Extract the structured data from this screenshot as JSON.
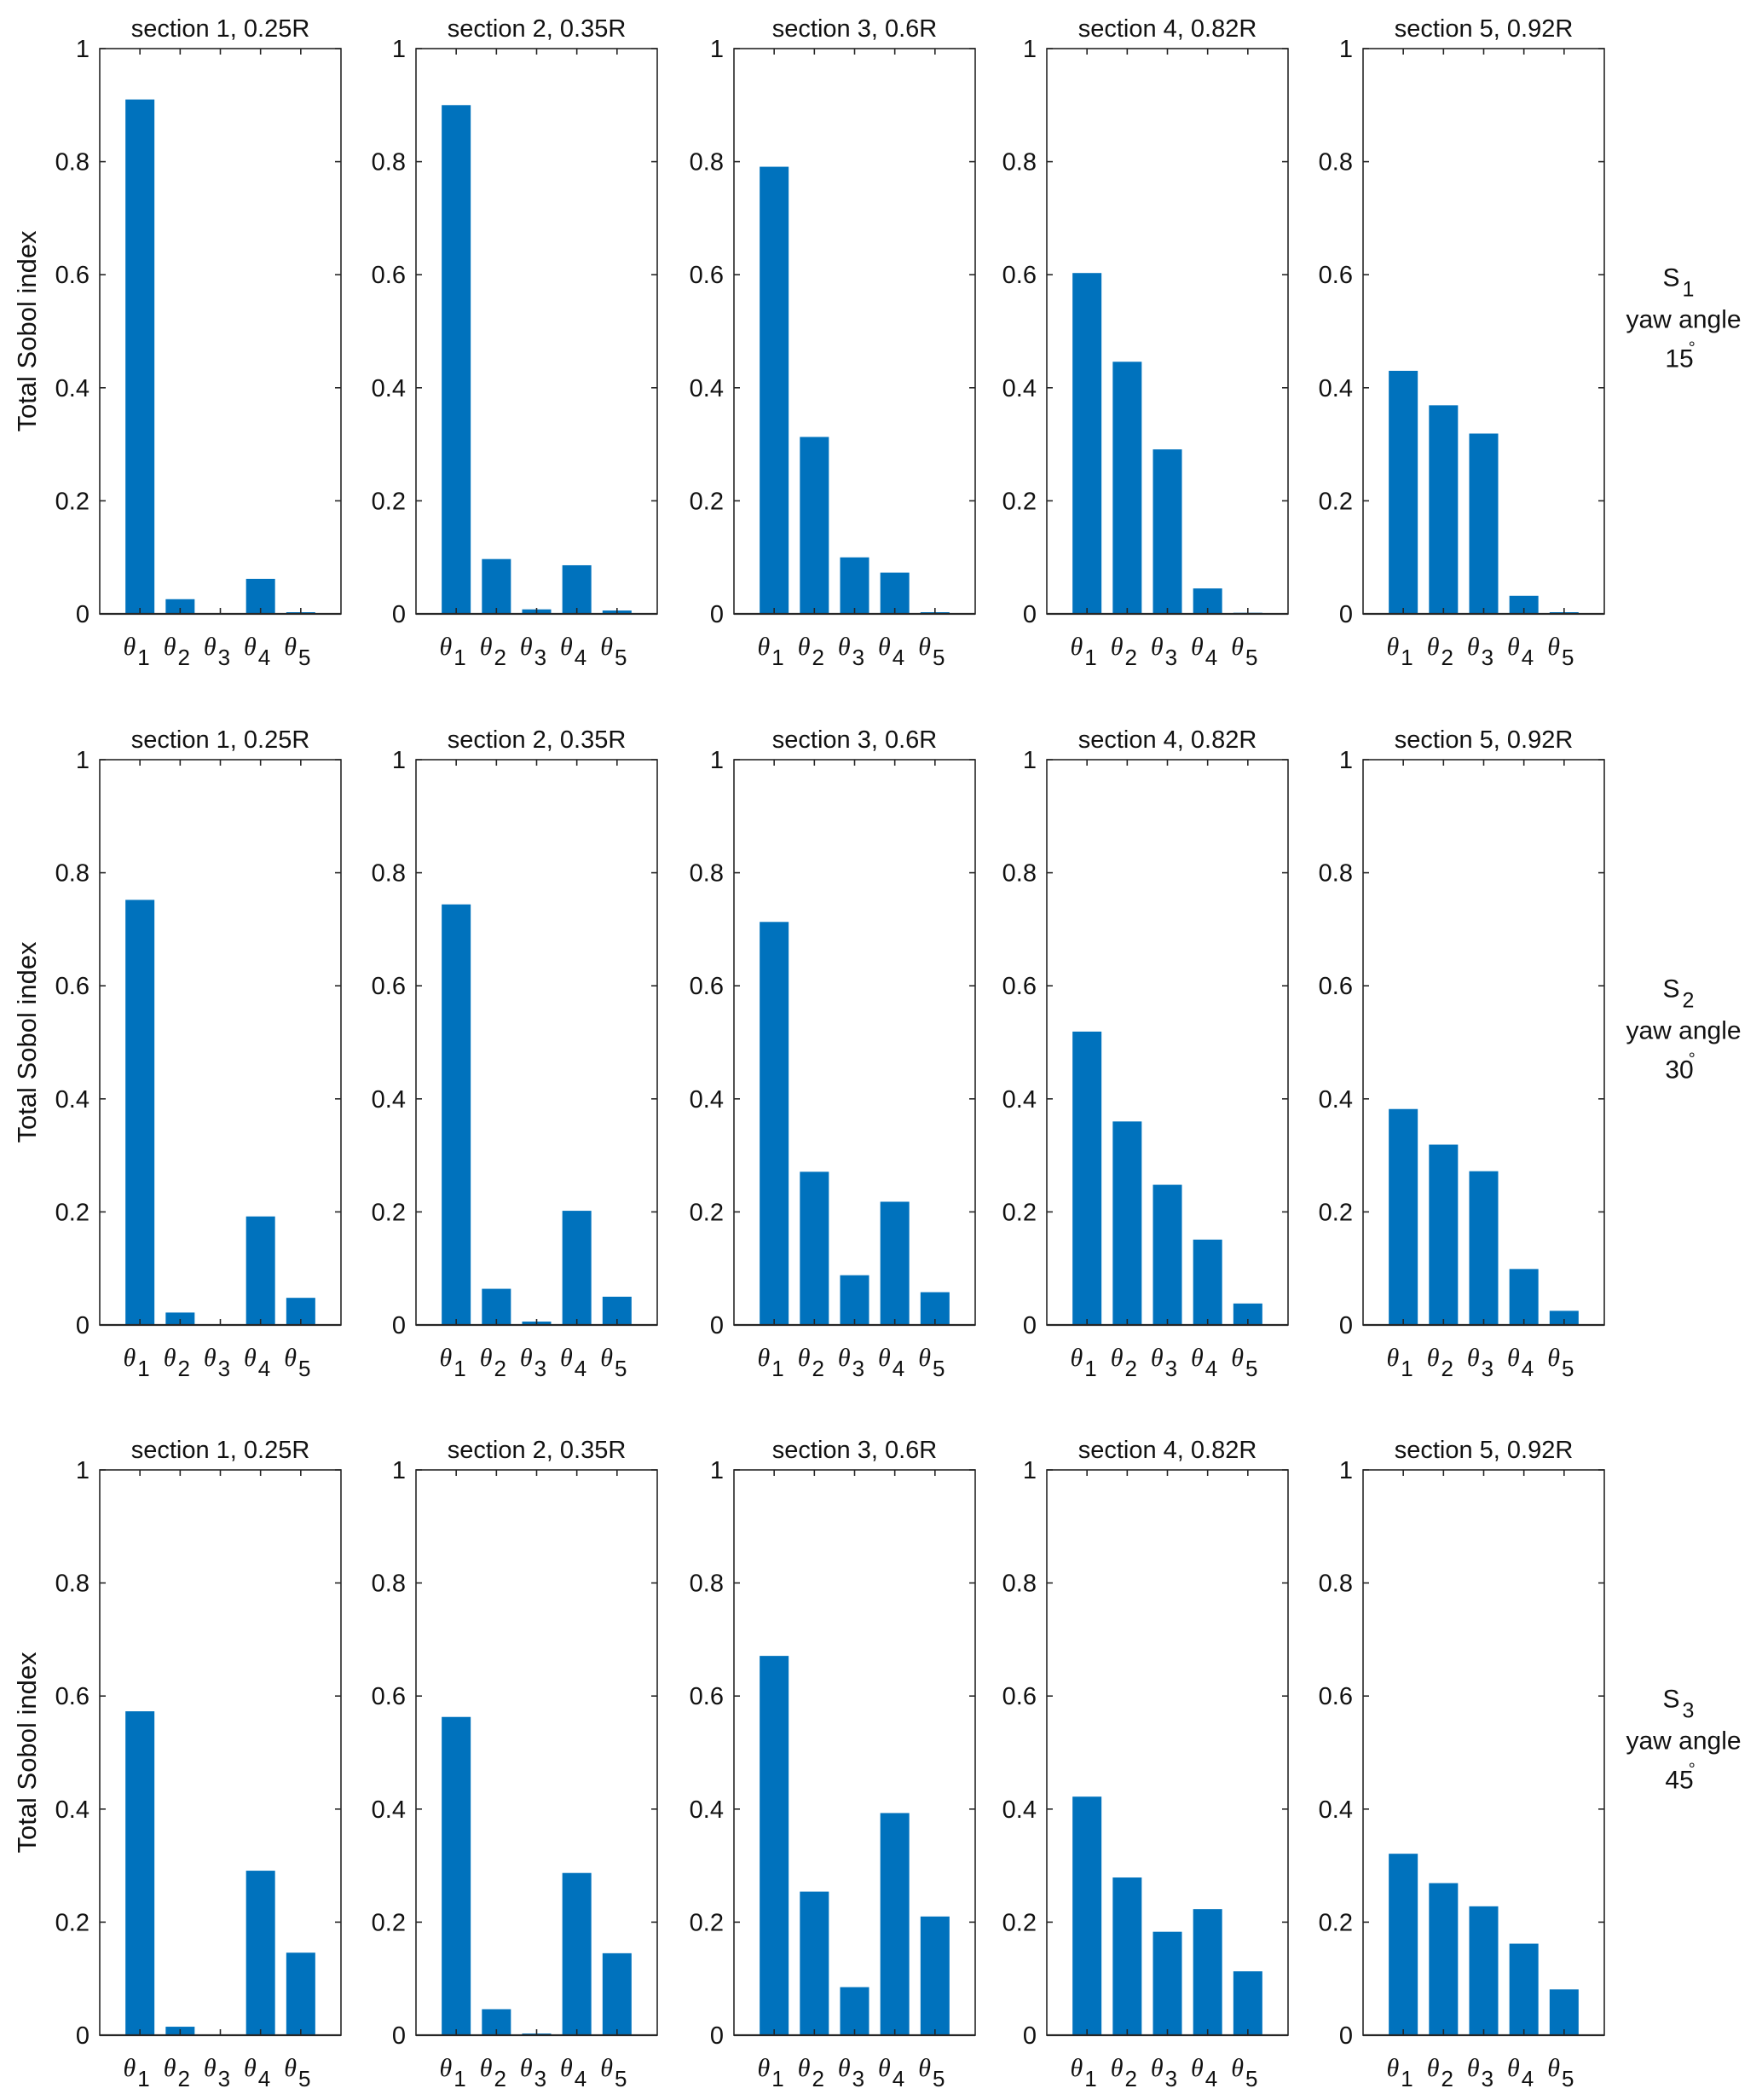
{
  "figure": {
    "ylabel": "Total Sobol index",
    "bar_color": "#0072BD",
    "rows": [
      {
        "label_main": "S",
        "label_sub": "1",
        "label_line2": "yaw angle",
        "label_angle": "15",
        "label_degree": "°"
      },
      {
        "label_main": "S",
        "label_sub": "2",
        "label_line2": "yaw angle",
        "label_angle": "30",
        "label_degree": "°"
      },
      {
        "label_main": "S",
        "label_sub": "3",
        "label_line2": "yaw angle",
        "label_angle": "45",
        "label_degree": "°"
      }
    ]
  },
  "chart_data": {
    "type": "bar",
    "layout": "3 rows x 5 columns grid of bar charts",
    "ylabel": "Total Sobol index",
    "ylim": [
      0,
      1
    ],
    "yticks": [
      0,
      0.2,
      0.4,
      0.6,
      0.8,
      1
    ],
    "ytick_labels": [
      "0",
      "0.2",
      "0.4",
      "0.6",
      "0.8",
      "1"
    ],
    "categories": [
      {
        "symbol": "θ",
        "sub": "1"
      },
      {
        "symbol": "θ",
        "sub": "2"
      },
      {
        "symbol": "θ",
        "sub": "3"
      },
      {
        "symbol": "θ",
        "sub": "4"
      },
      {
        "symbol": "θ",
        "sub": "5"
      }
    ],
    "column_titles": [
      "section 1, 0.25R",
      "section 2, 0.35R",
      "section 3, 0.6R",
      "section 4, 0.82R",
      "section 5, 0.92R"
    ],
    "row_labels": [
      "S1 yaw angle 15°",
      "S2 yaw angle 30°",
      "S3 yaw angle 45°"
    ],
    "grid": false,
    "panels": [
      [
        {
          "title": "section 1, 0.25R",
          "values": [
            0.91,
            0.026,
            0.001,
            0.062,
            0.003
          ]
        },
        {
          "title": "section 2, 0.35R",
          "values": [
            0.9,
            0.097,
            0.008,
            0.086,
            0.006
          ]
        },
        {
          "title": "section 3, 0.6R",
          "values": [
            0.791,
            0.313,
            0.1,
            0.073,
            0.003
          ]
        },
        {
          "title": "section 4, 0.82R",
          "values": [
            0.603,
            0.446,
            0.291,
            0.045,
            0.002
          ]
        },
        {
          "title": "section 5, 0.92R",
          "values": [
            0.43,
            0.369,
            0.319,
            0.032,
            0.003
          ]
        }
      ],
      [
        {
          "title": "section 1, 0.25R",
          "values": [
            0.752,
            0.022,
            0.001,
            0.192,
            0.048
          ]
        },
        {
          "title": "section 2, 0.35R",
          "values": [
            0.744,
            0.064,
            0.006,
            0.202,
            0.05
          ]
        },
        {
          "title": "section 3, 0.6R",
          "values": [
            0.713,
            0.271,
            0.088,
            0.218,
            0.058
          ]
        },
        {
          "title": "section 4, 0.82R",
          "values": [
            0.519,
            0.36,
            0.248,
            0.151,
            0.038
          ]
        },
        {
          "title": "section 5, 0.92R",
          "values": [
            0.382,
            0.319,
            0.272,
            0.099,
            0.025
          ]
        }
      ],
      [
        {
          "title": "section 1, 0.25R",
          "values": [
            0.573,
            0.015,
            0.001,
            0.291,
            0.146
          ]
        },
        {
          "title": "section 2, 0.35R",
          "values": [
            0.563,
            0.046,
            0.003,
            0.287,
            0.145
          ]
        },
        {
          "title": "section 3, 0.6R",
          "values": [
            0.671,
            0.254,
            0.085,
            0.393,
            0.21
          ]
        },
        {
          "title": "section 4, 0.82R",
          "values": [
            0.422,
            0.279,
            0.183,
            0.223,
            0.113
          ]
        },
        {
          "title": "section 5, 0.92R",
          "values": [
            0.321,
            0.269,
            0.228,
            0.162,
            0.081
          ]
        }
      ]
    ]
  }
}
